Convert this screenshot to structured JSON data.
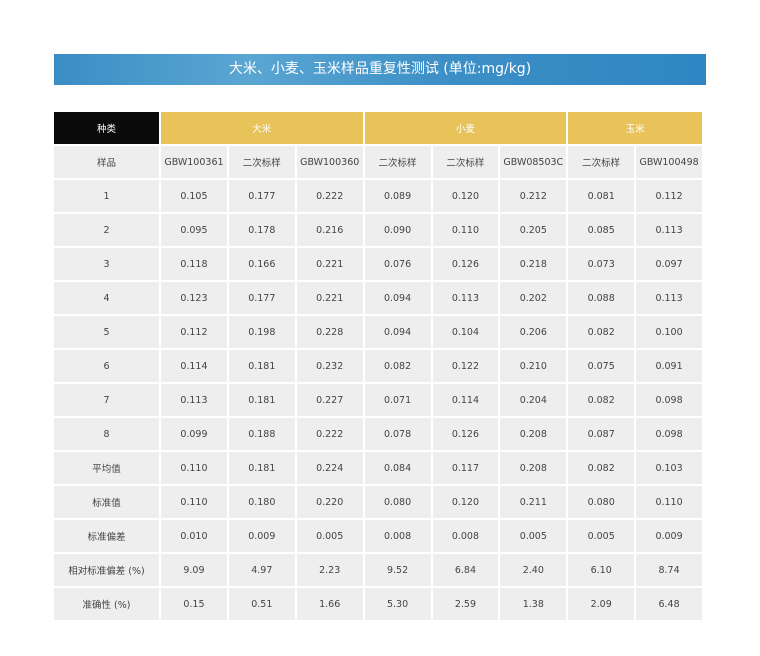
{
  "title": "大米、小麦、玉米样品重复性测试 (单位:mg/kg)",
  "header": {
    "kind_label": "种类",
    "groups": [
      {
        "label": "大米",
        "span": 3
      },
      {
        "label": "小麦",
        "span": 3
      },
      {
        "label": "玉米",
        "span": 2
      }
    ],
    "colors": {
      "kind_bg": "#0a0a0a",
      "group_bg": "#e8c35a",
      "banner": "#3a8dc4"
    }
  },
  "sample_row": {
    "label": "样品",
    "samples": [
      "GBW100361",
      "二次标样",
      "GBW100360",
      "二次标样",
      "二次标样",
      "GBW08503C",
      "二次标样",
      "GBW100498"
    ]
  },
  "rows": [
    {
      "label": "1",
      "values": [
        "0.105",
        "0.177",
        "0.222",
        "0.089",
        "0.120",
        "0.212",
        "0.081",
        "0.112"
      ]
    },
    {
      "label": "2",
      "values": [
        "0.095",
        "0.178",
        "0.216",
        "0.090",
        "0.110",
        "0.205",
        "0.085",
        "0.113"
      ]
    },
    {
      "label": "3",
      "values": [
        "0.118",
        "0.166",
        "0.221",
        "0.076",
        "0.126",
        "0.218",
        "0.073",
        "0.097"
      ]
    },
    {
      "label": "4",
      "values": [
        "0.123",
        "0.177",
        "0.221",
        "0.094",
        "0.113",
        "0.202",
        "0.088",
        "0.113"
      ]
    },
    {
      "label": "5",
      "values": [
        "0.112",
        "0.198",
        "0.228",
        "0.094",
        "0.104",
        "0.206",
        "0.082",
        "0.100"
      ]
    },
    {
      "label": "6",
      "values": [
        "0.114",
        "0.181",
        "0.232",
        "0.082",
        "0.122",
        "0.210",
        "0.075",
        "0.091"
      ]
    },
    {
      "label": "7",
      "values": [
        "0.113",
        "0.181",
        "0.227",
        "0.071",
        "0.114",
        "0.204",
        "0.082",
        "0.098"
      ]
    },
    {
      "label": "8",
      "values": [
        "0.099",
        "0.188",
        "0.222",
        "0.078",
        "0.126",
        "0.208",
        "0.087",
        "0.098"
      ]
    },
    {
      "label": "平均值",
      "values": [
        "0.110",
        "0.181",
        "0.224",
        "0.084",
        "0.117",
        "0.208",
        "0.082",
        "0.103"
      ]
    },
    {
      "label": "标准值",
      "values": [
        "0.110",
        "0.180",
        "0.220",
        "0.080",
        "0.120",
        "0.211",
        "0.080",
        "0.110"
      ]
    },
    {
      "label": "标准偏差",
      "values": [
        "0.010",
        "0.009",
        "0.005",
        "0.008",
        "0.008",
        "0.005",
        "0.005",
        "0.009"
      ]
    },
    {
      "label": "相对标准偏差 (%)",
      "values": [
        "9.09",
        "4.97",
        "2.23",
        "9.52",
        "6.84",
        "2.40",
        "6.10",
        "8.74"
      ]
    },
    {
      "label": "准确性 (%)",
      "values": [
        "0.15",
        "0.51",
        "1.66",
        "5.30",
        "2.59",
        "1.38",
        "2.09",
        "6.48"
      ]
    }
  ]
}
